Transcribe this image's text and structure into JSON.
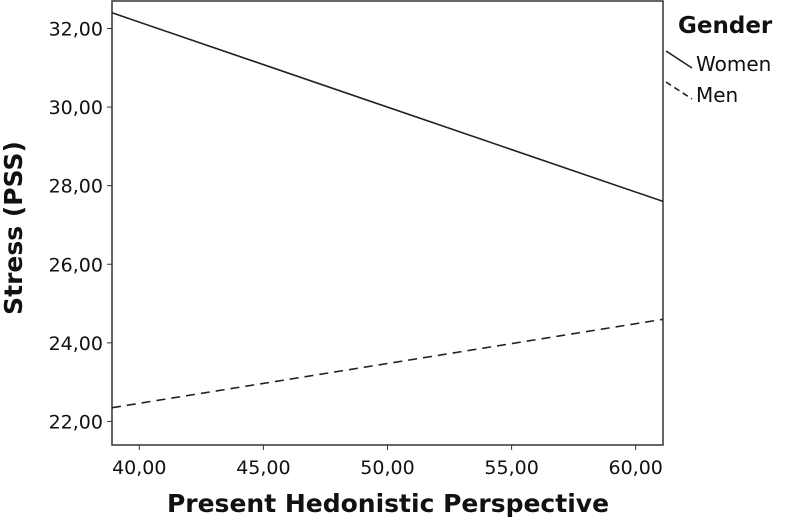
{
  "chart_data": {
    "type": "line",
    "xlabel": "Present Hedonistic Perspective",
    "ylabel": "Stress (PSS)",
    "xlim": [
      38.9,
      61.1
    ],
    "ylim": [
      21.4,
      32.7
    ],
    "xticks": [
      40,
      45,
      50,
      55,
      60
    ],
    "xtick_labels": [
      "40,00",
      "45,00",
      "50,00",
      "55,00",
      "60,00"
    ],
    "yticks": [
      22,
      24,
      26,
      28,
      30,
      32
    ],
    "ytick_labels": [
      "22,00",
      "24,00",
      "26,00",
      "28,00",
      "30,00",
      "32,00"
    ],
    "legend": {
      "title": "Gender",
      "placement": "top-right, outside plot"
    },
    "series": [
      {
        "name": "Women",
        "style": "solid",
        "color": "#222222",
        "x": [
          38.9,
          61.1
        ],
        "y": [
          32.4,
          27.6
        ]
      },
      {
        "name": "Men",
        "style": "dashed",
        "color": "#222222",
        "x": [
          38.9,
          61.1
        ],
        "y": [
          22.35,
          24.6
        ]
      }
    ]
  }
}
